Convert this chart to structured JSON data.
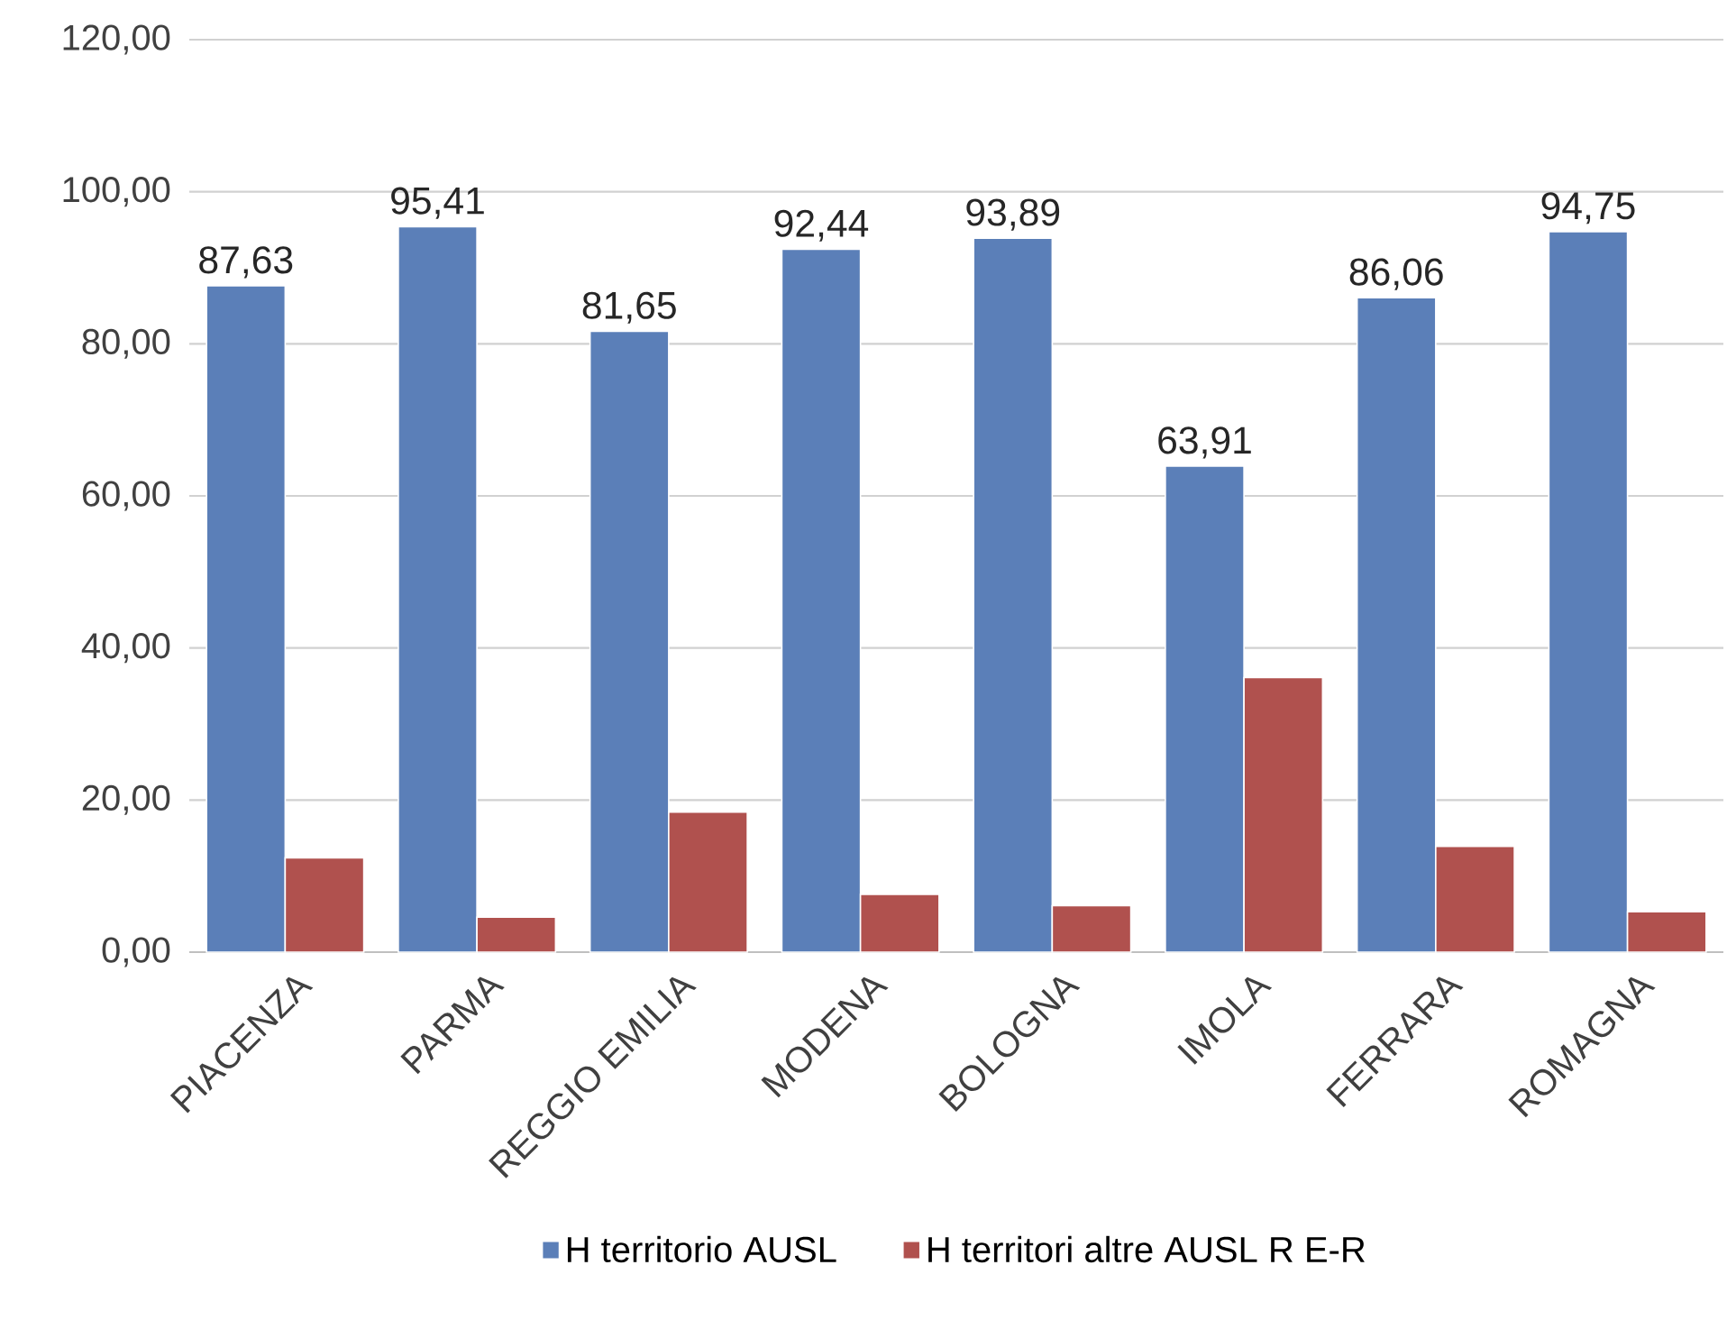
{
  "chart_data": {
    "type": "bar",
    "categories": [
      "PIACENZA",
      "PARMA",
      "REGGIO EMILIA",
      "MODENA",
      "BOLOGNA",
      "IMOLA",
      "FERRARA",
      "ROMAGNA"
    ],
    "series": [
      {
        "name": "H territorio AUSL",
        "color": "#5b7fb8",
        "values": [
          87.63,
          95.41,
          81.65,
          92.44,
          93.89,
          63.91,
          86.06,
          94.75
        ],
        "value_labels": [
          "87,63",
          "95,41",
          "81,65",
          "92,44",
          "93,89",
          "63,91",
          "86,06",
          "94,75"
        ]
      },
      {
        "name": "H territori altre AUSL R E-R",
        "color": "#b0514e",
        "values": [
          12.4,
          4.6,
          18.4,
          7.6,
          6.1,
          36.1,
          13.9,
          5.3
        ]
      }
    ],
    "ylim": [
      0,
      120
    ],
    "yticks": [
      {
        "value": 0,
        "label": "0,00"
      },
      {
        "value": 20,
        "label": "20,00"
      },
      {
        "value": 40,
        "label": "40,00"
      },
      {
        "value": 60,
        "label": "60,00"
      },
      {
        "value": 80,
        "label": "80,00"
      },
      {
        "value": 100,
        "label": "100,00"
      },
      {
        "value": 120,
        "label": "120,00"
      }
    ],
    "grid": "y",
    "legend": "bottom"
  }
}
